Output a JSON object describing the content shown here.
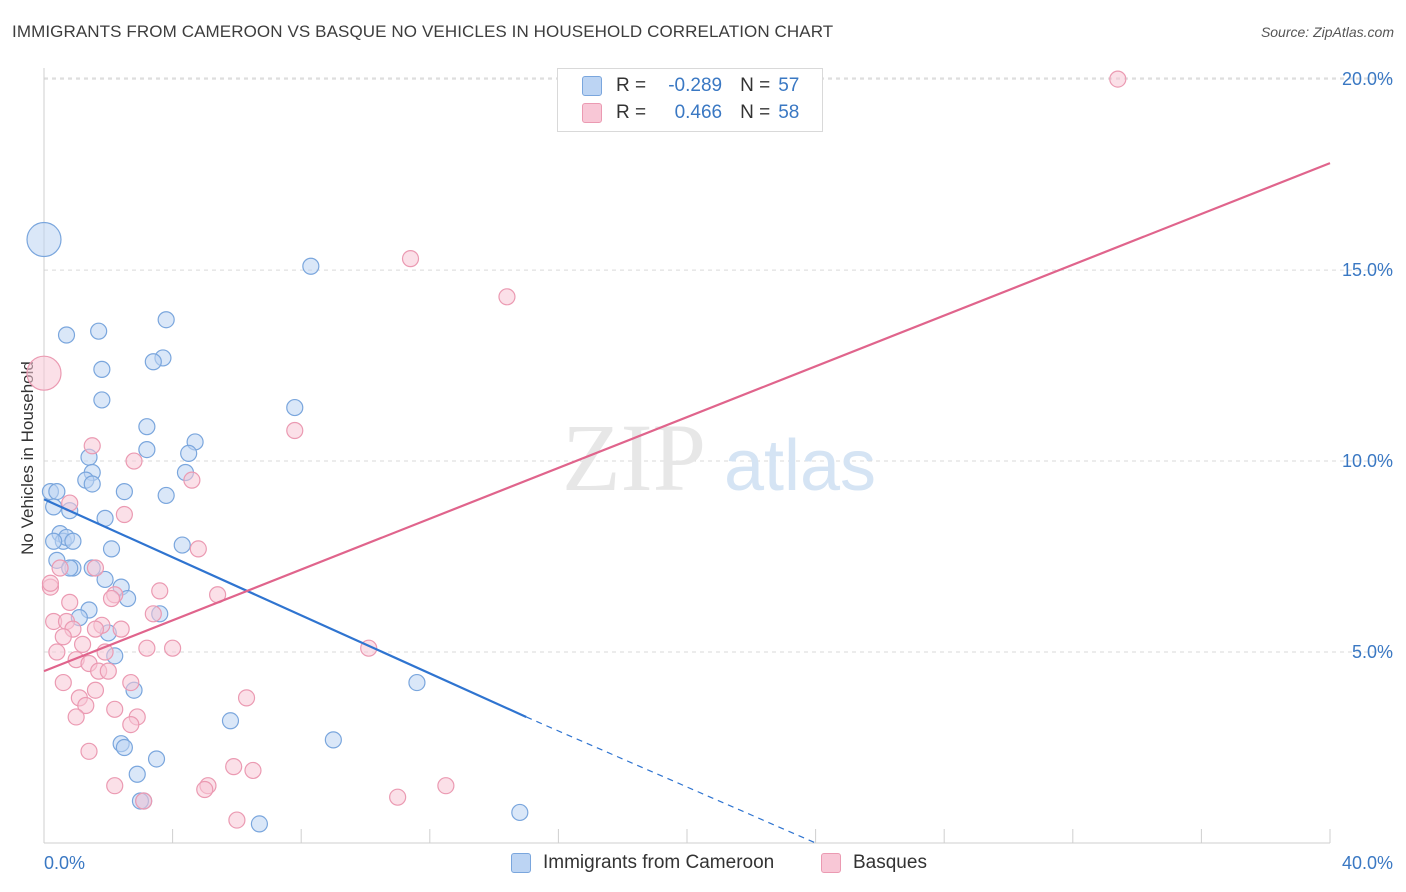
{
  "title": "IMMIGRANTS FROM CAMEROON VS BASQUE NO VEHICLES IN HOUSEHOLD CORRELATION CHART",
  "source": "Source: ZipAtlas.com",
  "watermark": {
    "zip": "ZIP",
    "atlas": "atlas"
  },
  "legend": {
    "rows": [
      {
        "r_label": "R =",
        "r_value": "-0.289",
        "n_label": "N =",
        "n_value": "57"
      },
      {
        "r_label": "R =",
        "r_value": "0.466",
        "n_label": "N =",
        "n_value": "58"
      }
    ]
  },
  "colors": {
    "blue_fill": "#bcd4f3",
    "blue_stroke": "#7aa6dd",
    "blue_line": "#2f74d0",
    "pink_fill": "#f8c7d6",
    "pink_stroke": "#eb9ab2",
    "pink_line": "#e0648c",
    "grid": "#d9d9d9",
    "tick_label": "#3a78c3"
  },
  "chart_data": {
    "type": "scatter",
    "title": "IMMIGRANTS FROM CAMEROON VS BASQUE NO VEHICLES IN HOUSEHOLD CORRELATION CHART",
    "xlabel": "",
    "ylabel": "No Vehicles in Household",
    "xlim": [
      0,
      40
    ],
    "ylim": [
      0,
      20.5
    ],
    "x_tick_labels": [
      "0.0%",
      "40.0%"
    ],
    "y_ticks": [
      5,
      10,
      15,
      20
    ],
    "y_tick_labels": [
      "5.0%",
      "10.0%",
      "15.0%",
      "20.0%"
    ],
    "grid": true,
    "series": [
      {
        "name": "Immigrants from Cameroon",
        "r": -0.289,
        "n": 57,
        "trend": {
          "x0": 0,
          "y0": 9.0,
          "x1": 15.0,
          "y1": 3.3,
          "dash_to_x": 24.0,
          "dash_to_y": 0.0
        },
        "points": [
          [
            0.0,
            15.8,
            3
          ],
          [
            8.3,
            15.1,
            1
          ],
          [
            3.8,
            13.7,
            1
          ],
          [
            0.7,
            13.3,
            1
          ],
          [
            1.7,
            13.4,
            1
          ],
          [
            3.7,
            12.7,
            1
          ],
          [
            3.4,
            12.6,
            1
          ],
          [
            1.8,
            12.4,
            1
          ],
          [
            1.8,
            11.6,
            1
          ],
          [
            7.8,
            11.4,
            1
          ],
          [
            3.2,
            10.9,
            1
          ],
          [
            4.7,
            10.5,
            1
          ],
          [
            3.2,
            10.3,
            1
          ],
          [
            4.5,
            10.2,
            1
          ],
          [
            1.4,
            10.1,
            1
          ],
          [
            4.4,
            9.7,
            1
          ],
          [
            1.5,
            9.7,
            1
          ],
          [
            1.3,
            9.5,
            1
          ],
          [
            1.5,
            9.4,
            1
          ],
          [
            0.2,
            9.2,
            1
          ],
          [
            0.4,
            9.2,
            1
          ],
          [
            2.5,
            9.2,
            1
          ],
          [
            3.8,
            9.1,
            1
          ],
          [
            0.3,
            8.8,
            1
          ],
          [
            0.8,
            8.7,
            1
          ],
          [
            1.9,
            8.5,
            1
          ],
          [
            0.5,
            8.1,
            1
          ],
          [
            0.6,
            7.9,
            1
          ],
          [
            0.7,
            8.0,
            1
          ],
          [
            0.3,
            7.9,
            1
          ],
          [
            0.9,
            7.9,
            1
          ],
          [
            4.3,
            7.8,
            1
          ],
          [
            2.1,
            7.7,
            1
          ],
          [
            0.4,
            7.4,
            1
          ],
          [
            0.9,
            7.2,
            1
          ],
          [
            1.5,
            7.2,
            1
          ],
          [
            0.8,
            7.2,
            1
          ],
          [
            1.9,
            6.9,
            1
          ],
          [
            2.4,
            6.7,
            1
          ],
          [
            2.6,
            6.4,
            1
          ],
          [
            1.4,
            6.1,
            1
          ],
          [
            3.6,
            6.0,
            1
          ],
          [
            1.1,
            5.9,
            1
          ],
          [
            2.0,
            5.5,
            1
          ],
          [
            2.2,
            4.9,
            1
          ],
          [
            11.6,
            4.2,
            1
          ],
          [
            2.8,
            4.0,
            1
          ],
          [
            5.8,
            3.2,
            1
          ],
          [
            9.0,
            2.7,
            1
          ],
          [
            2.4,
            2.6,
            1
          ],
          [
            2.5,
            2.5,
            1
          ],
          [
            3.5,
            2.2,
            1
          ],
          [
            2.9,
            1.8,
            1
          ],
          [
            3.1,
            1.1,
            1
          ],
          [
            14.8,
            0.8,
            1
          ],
          [
            6.7,
            0.5,
            1
          ],
          [
            3.0,
            1.1,
            1
          ]
        ]
      },
      {
        "name": "Basques",
        "r": 0.466,
        "n": 58,
        "trend": {
          "x0": 0,
          "y0": 4.5,
          "x1": 40,
          "y1": 17.8
        },
        "points": [
          [
            33.4,
            20.0,
            1
          ],
          [
            0.0,
            12.3,
            3
          ],
          [
            11.4,
            15.3,
            1
          ],
          [
            14.4,
            14.3,
            1
          ],
          [
            7.8,
            10.8,
            1
          ],
          [
            1.5,
            10.4,
            1
          ],
          [
            2.8,
            10.0,
            1
          ],
          [
            4.6,
            9.5,
            1
          ],
          [
            0.8,
            8.9,
            1
          ],
          [
            2.5,
            8.6,
            1
          ],
          [
            4.8,
            7.7,
            1
          ],
          [
            0.5,
            7.2,
            1
          ],
          [
            1.6,
            7.2,
            1
          ],
          [
            0.2,
            6.7,
            1
          ],
          [
            0.2,
            6.8,
            1
          ],
          [
            3.6,
            6.6,
            1
          ],
          [
            2.2,
            6.5,
            1
          ],
          [
            5.4,
            6.5,
            1
          ],
          [
            2.1,
            6.4,
            1
          ],
          [
            0.8,
            6.3,
            1
          ],
          [
            3.4,
            6.0,
            1
          ],
          [
            0.3,
            5.8,
            1
          ],
          [
            0.7,
            5.8,
            1
          ],
          [
            1.8,
            5.7,
            1
          ],
          [
            0.9,
            5.6,
            1
          ],
          [
            1.6,
            5.6,
            1
          ],
          [
            2.4,
            5.6,
            1
          ],
          [
            0.6,
            5.4,
            1
          ],
          [
            1.2,
            5.2,
            1
          ],
          [
            10.1,
            5.1,
            1
          ],
          [
            1.9,
            5.0,
            1
          ],
          [
            3.2,
            5.1,
            1
          ],
          [
            4.0,
            5.1,
            1
          ],
          [
            0.4,
            5.0,
            1
          ],
          [
            1.0,
            4.8,
            1
          ],
          [
            1.4,
            4.7,
            1
          ],
          [
            1.7,
            4.5,
            1
          ],
          [
            2.0,
            4.5,
            1
          ],
          [
            0.6,
            4.2,
            1
          ],
          [
            2.7,
            4.2,
            1
          ],
          [
            1.6,
            4.0,
            1
          ],
          [
            6.3,
            3.8,
            1
          ],
          [
            1.1,
            3.8,
            1
          ],
          [
            1.3,
            3.6,
            1
          ],
          [
            2.2,
            3.5,
            1
          ],
          [
            1.0,
            3.3,
            1
          ],
          [
            2.9,
            3.3,
            1
          ],
          [
            2.7,
            3.1,
            1
          ],
          [
            1.4,
            2.4,
            1
          ],
          [
            5.9,
            2.0,
            1
          ],
          [
            6.5,
            1.9,
            1
          ],
          [
            2.2,
            1.5,
            1
          ],
          [
            5.1,
            1.5,
            1
          ],
          [
            12.5,
            1.5,
            1
          ],
          [
            5.0,
            1.4,
            1
          ],
          [
            11.0,
            1.2,
            1
          ],
          [
            3.1,
            1.1,
            1
          ],
          [
            6.0,
            0.6,
            1
          ]
        ]
      }
    ]
  },
  "bottom_legend": [
    {
      "label": "Immigrants from Cameroon"
    },
    {
      "label": "Basques"
    }
  ]
}
